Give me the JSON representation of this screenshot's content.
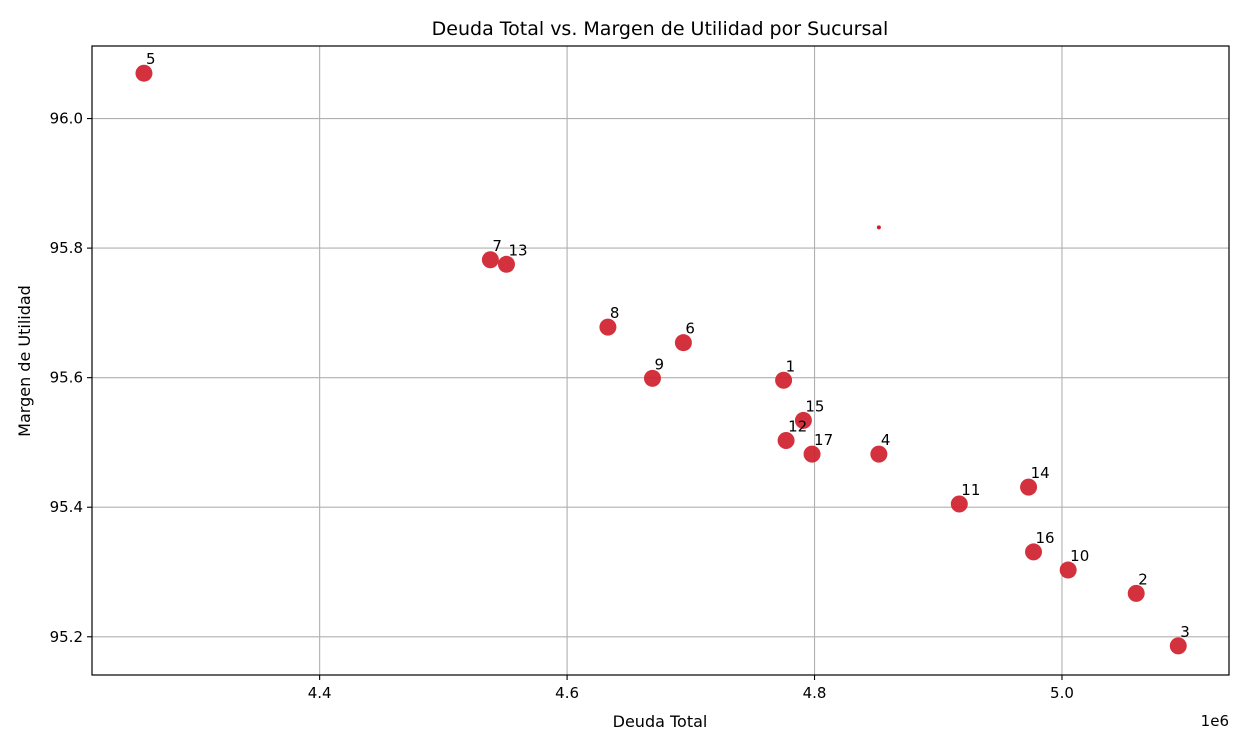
{
  "chart_data": {
    "type": "scatter",
    "title": "Deuda Total vs. Margen de Utilidad por Sucursal",
    "xlabel": "Deuda Total",
    "ylabel": "Margen de Utilidad",
    "x_offset_label": "1e6",
    "x_scale_factor": 1000000,
    "xlim": [
      4.216,
      5.135
    ],
    "ylim": [
      95.141,
      96.112
    ],
    "xticks": [
      4.4,
      4.6,
      4.8,
      5.0
    ],
    "xtick_labels": [
      "4.4",
      "4.6",
      "4.8",
      "5.0"
    ],
    "yticks": [
      95.2,
      95.4,
      95.6,
      95.8,
      96.0
    ],
    "ytick_labels": [
      "95.2",
      "95.4",
      "95.6",
      "95.8",
      "96.0"
    ],
    "grid": true,
    "marker_color": "#d0202e",
    "points": [
      {
        "label": "5",
        "x": 4.258,
        "y": 96.07
      },
      {
        "label": "7",
        "x": 4.538,
        "y": 95.782
      },
      {
        "label": "13",
        "x": 4.551,
        "y": 95.775
      },
      {
        "label": "8",
        "x": 4.633,
        "y": 95.678
      },
      {
        "label": "6",
        "x": 4.694,
        "y": 95.654
      },
      {
        "label": "9",
        "x": 4.669,
        "y": 95.599
      },
      {
        "label": "1",
        "x": 4.775,
        "y": 95.596
      },
      {
        "label": "15",
        "x": 4.791,
        "y": 95.534
      },
      {
        "label": "12",
        "x": 4.777,
        "y": 95.503
      },
      {
        "label": "17",
        "x": 4.798,
        "y": 95.482
      },
      {
        "label": "4",
        "x": 4.852,
        "y": 95.482
      },
      {
        "label": "11",
        "x": 4.917,
        "y": 95.405
      },
      {
        "label": "14",
        "x": 4.973,
        "y": 95.431
      },
      {
        "label": "16",
        "x": 4.977,
        "y": 95.331
      },
      {
        "label": "10",
        "x": 5.005,
        "y": 95.303
      },
      {
        "label": "2",
        "x": 5.06,
        "y": 95.267
      },
      {
        "label": "3",
        "x": 5.094,
        "y": 95.186
      }
    ],
    "extra_points": [
      {
        "x": 4.852,
        "y": 95.832
      }
    ]
  }
}
